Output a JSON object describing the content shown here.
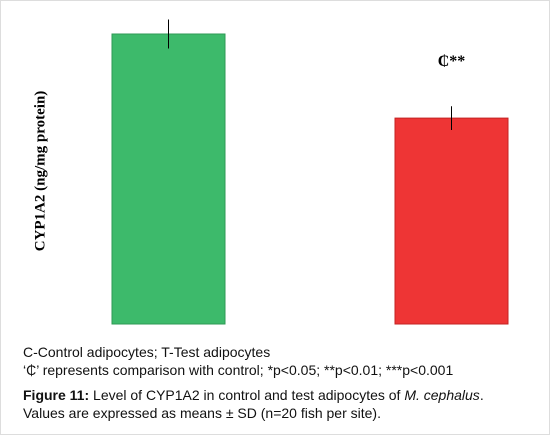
{
  "chart_data": {
    "type": "bar",
    "y_label": "CYP1A2 (ng/mg protein)",
    "categories": [
      null,
      null
    ],
    "values": [
      100,
      71
    ],
    "errors": [
      5,
      4.1
    ],
    "colors": [
      "#3dba6b",
      "#ee3535"
    ],
    "edge_colors": [
      "#2e9a55",
      "#c42222"
    ],
    "ylim": [
      0,
      100
    ],
    "annotations": [
      {
        "text": "₵**",
        "series_index": 1
      }
    ]
  },
  "caption": {
    "line1": "C-Control adipocytes; T-Test adipocytes",
    "line2": "‘₵’ represents comparison with control; *p<0.05; **p<0.01; ***p<0.001",
    "figure_label": "Figure 11:",
    "figure_text": "Level of CYP1A2 in control and test adipocytes of",
    "species": "M. cephalus",
    "end": ".",
    "line4": "Values are expressed as means ± SD (n=20 fish per site)."
  }
}
